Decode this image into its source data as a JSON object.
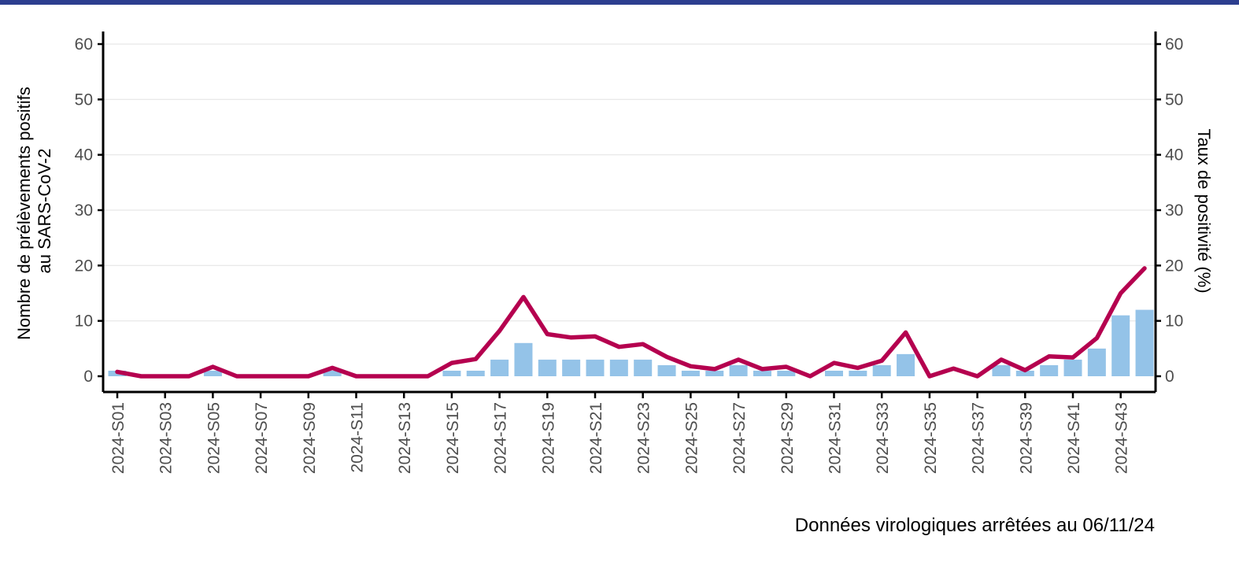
{
  "chart_data": {
    "type": "bar",
    "x_categories": [
      "2024-S01",
      "2024-S02",
      "2024-S03",
      "2024-S04",
      "2024-S05",
      "2024-S06",
      "2024-S07",
      "2024-S08",
      "2024-S09",
      "2024-S10",
      "2024-S11",
      "2024-S12",
      "2024-S13",
      "2024-S14",
      "2024-S15",
      "2024-S16",
      "2024-S17",
      "2024-S18",
      "2024-S19",
      "2024-S20",
      "2024-S21",
      "2024-S22",
      "2024-S23",
      "2024-S24",
      "2024-S25",
      "2024-S26",
      "2024-S27",
      "2024-S28",
      "2024-S29",
      "2024-S30",
      "2024-S31",
      "2024-S32",
      "2024-S33",
      "2024-S34",
      "2024-S35",
      "2024-S36",
      "2024-S37",
      "2024-S38",
      "2024-S39",
      "2024-S40",
      "2024-S41",
      "2024-S42",
      "2024-S43",
      "2024-S44"
    ],
    "x_tick_labels": [
      "2024-S01",
      "2024-S03",
      "2024-S05",
      "2024-S07",
      "2024-S09",
      "2024-S11",
      "2024-S13",
      "2024-S15",
      "2024-S17",
      "2024-S19",
      "2024-S21",
      "2024-S23",
      "2024-S25",
      "2024-S27",
      "2024-S29",
      "2024-S31",
      "2024-S33",
      "2024-S35",
      "2024-S37",
      "2024-S39",
      "2024-S41",
      "2024-S43"
    ],
    "series": [
      {
        "type": "bar",
        "axis": "left",
        "values": [
          1,
          0,
          0,
          0,
          1,
          0,
          0,
          0,
          0,
          1,
          0,
          0,
          0,
          0,
          1,
          1,
          3,
          6,
          3,
          3,
          3,
          3,
          3,
          2,
          1,
          1,
          2,
          1,
          1,
          0,
          1,
          1,
          2,
          4,
          0,
          0,
          0,
          2,
          1,
          2,
          3,
          5,
          11,
          12
        ]
      },
      {
        "type": "line",
        "axis": "right",
        "values": [
          0.8,
          0,
          0,
          0,
          1.7,
          0,
          0,
          0,
          0,
          1.5,
          0,
          0,
          0,
          0,
          2.4,
          3.1,
          8.2,
          14.3,
          7.6,
          7,
          7.2,
          5.3,
          5.8,
          3.5,
          1.8,
          1.3,
          3,
          1.3,
          1.7,
          0,
          2.4,
          1.5,
          2.8,
          7.9,
          0,
          1.4,
          0,
          3,
          1.1,
          3.6,
          3.4,
          6.9,
          15,
          19.5
        ]
      }
    ],
    "ylabel_left": [
      "Nombre de prélèvements positifs",
      "au SARS-CoV-2"
    ],
    "ylabel_right": "Taux de positivité (%)",
    "ylim_left": [
      0,
      60
    ],
    "ylim_right": [
      0,
      60
    ],
    "y_ticks": [
      0,
      10,
      20,
      30,
      40,
      50,
      60
    ],
    "grid": true,
    "caption": "Données virologiques arrêtées au 06/11/24",
    "colors": {
      "bars": "#94c3e8",
      "line": "#b5004f",
      "header_strip": "#2c3e8f",
      "grid": "#e6e6e6",
      "axis": "#000000"
    }
  }
}
